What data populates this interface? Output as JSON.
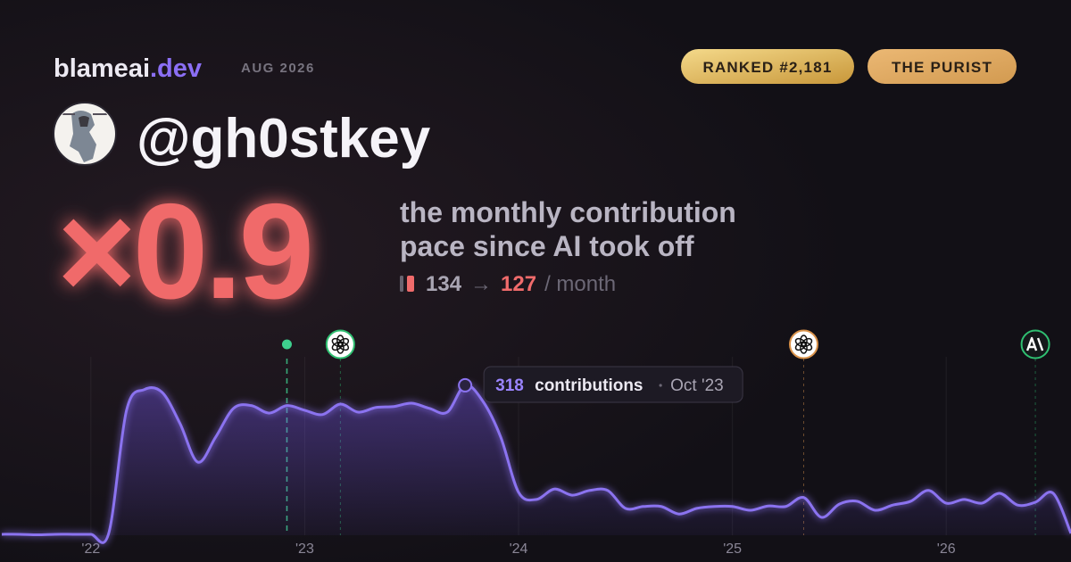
{
  "brand": {
    "name": "blameai",
    "tld": ".dev",
    "period": "AUG 2026"
  },
  "badges": [
    "RANKED #2,181",
    "THE PURIST"
  ],
  "handle": "@gh0stkey",
  "multiplier": "×0.9",
  "description": [
    "the monthly contribution",
    "pace since AI took off"
  ],
  "stats": {
    "before": 134,
    "arrow": "→",
    "after": 127,
    "unit": "/ month"
  },
  "chart_data": {
    "type": "area",
    "x": [
      "2021-08",
      "2021-09",
      "2021-10",
      "2021-11",
      "2021-12",
      "2022-01",
      "2022-02",
      "2022-03",
      "2022-04",
      "2022-05",
      "2022-06",
      "2022-07",
      "2022-08",
      "2022-09",
      "2022-10",
      "2022-11",
      "2022-12",
      "2023-01",
      "2023-02",
      "2023-03",
      "2023-04",
      "2023-05",
      "2023-06",
      "2023-07",
      "2023-08",
      "2023-09",
      "2023-10",
      "2023-11",
      "2023-12",
      "2024-01",
      "2024-02",
      "2024-03",
      "2024-04",
      "2024-05",
      "2024-06",
      "2024-07",
      "2024-08",
      "2024-09",
      "2024-10",
      "2024-11",
      "2024-12",
      "2025-01",
      "2025-02",
      "2025-03",
      "2025-04",
      "2025-05",
      "2025-06",
      "2025-07",
      "2025-08",
      "2025-09",
      "2025-10",
      "2025-11",
      "2025-12",
      "2026-01",
      "2026-02",
      "2026-03",
      "2026-04",
      "2026-05",
      "2026-06",
      "2026-07",
      "2026-08"
    ],
    "series": [
      {
        "color": "#8b73f0",
        "values": [
          2,
          2,
          1,
          2,
          2,
          2,
          4,
          265,
          309,
          303,
          237,
          155,
          208,
          269,
          275,
          259,
          275,
          265,
          256,
          278,
          261,
          271,
          273,
          280,
          269,
          261,
          318,
          284,
          208,
          91,
          76,
          98,
          85,
          95,
          95,
          57,
          61,
          61,
          45,
          57,
          61,
          61,
          53,
          62,
          61,
          80,
          38,
          66,
          72,
          53,
          64,
          72,
          95,
          68,
          76,
          68,
          89,
          64,
          70,
          89,
          4
        ]
      }
    ],
    "xlim": [
      "2021-08",
      "2026-08"
    ],
    "ylim": [
      0,
      420
    ],
    "xticks": [
      {
        "value": "2022-01",
        "label": "'22"
      },
      {
        "value": "2023-01",
        "label": "'23"
      },
      {
        "value": "2024-01",
        "label": "'24"
      },
      {
        "value": "2025-01",
        "label": "'25"
      },
      {
        "value": "2026-01",
        "label": "'26"
      }
    ],
    "grid": true,
    "events": [
      {
        "x": "2022-12",
        "color": "#3ecf8e"
      },
      {
        "x": "2023-03",
        "color": "#2fbf71"
      },
      {
        "x": "2025-05",
        "color": "#d9924a"
      },
      {
        "x": "2026-06",
        "color": "#2fbf71"
      }
    ],
    "tooltip": {
      "x": "2023-10",
      "label": "contributions",
      "date": "Oct '23"
    }
  }
}
